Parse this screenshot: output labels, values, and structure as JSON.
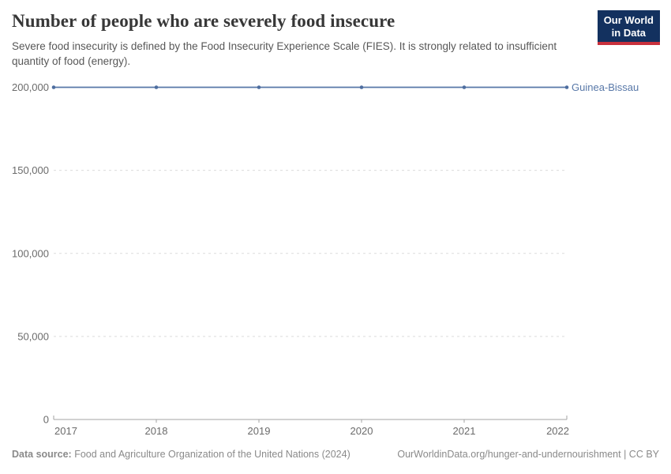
{
  "header": {
    "title": "Number of people who are severely food insecure",
    "subtitle": "Severe food insecurity is defined by the Food Insecurity Experience Scale (FIES). It is strongly related to insufficient quantity of food (energy).",
    "logo": {
      "line1": "Our World",
      "line2": "in Data"
    }
  },
  "chart_data": {
    "type": "line",
    "title": "Number of people who are severely food insecure",
    "x": [
      2017,
      2018,
      2019,
      2020,
      2021,
      2022
    ],
    "x_labels": [
      "2017",
      "2018",
      "2019",
      "2020",
      "2021",
      "2022"
    ],
    "series": [
      {
        "name": "Guinea-Bissau",
        "values": [
          200000,
          200000,
          200000,
          200000,
          200000,
          200000
        ],
        "color": "#5878a8",
        "marker_color": "#4d6d9f"
      }
    ],
    "ylim": [
      0,
      200000
    ],
    "yticks": [
      {
        "value": 0,
        "label": "0"
      },
      {
        "value": 50000,
        "label": "50,000"
      },
      {
        "value": 100000,
        "label": "100,000"
      },
      {
        "value": 150000,
        "label": "150,000"
      },
      {
        "value": 200000,
        "label": "200,000"
      }
    ],
    "grid": true,
    "gridline_style": "dashed",
    "legend_position": "end-of-line"
  },
  "footer": {
    "data_source_label": "Data source:",
    "data_source_value": "Food and Agriculture Organization of the United Nations (2024)",
    "credit": "OurWorldinData.org/hunger-and-undernourishment | CC BY"
  },
  "colors": {
    "accent_line": "#5878a8",
    "logo_bg": "#13315f",
    "logo_red": "#c8303c",
    "grid": "#dcdcdc",
    "axis": "#a3a3a3",
    "tick_text": "#6b6b6b",
    "title_text": "#373737",
    "subtitle_text": "#575757",
    "footer_text": "#8a8a8a"
  }
}
